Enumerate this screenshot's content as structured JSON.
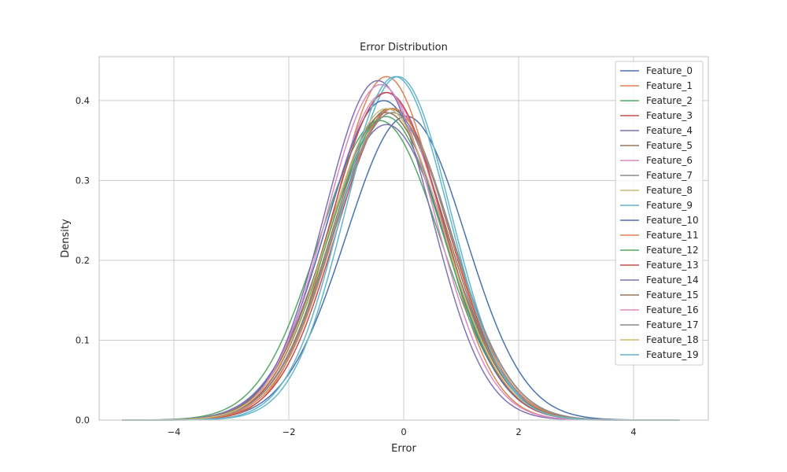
{
  "chart_data": {
    "type": "line",
    "title": "Error Distribution",
    "xlabel": "Error",
    "ylabel": "Density",
    "xlim": [
      -5.3,
      5.3
    ],
    "ylim": [
      0,
      0.455
    ],
    "xticks": [
      -4,
      -2,
      0,
      2,
      4
    ],
    "xtick_labels": [
      "−4",
      "−2",
      "0",
      "2",
      "4"
    ],
    "yticks": [
      0,
      0.1,
      0.2,
      0.3,
      0.4
    ],
    "ytick_labels": [
      "0.0",
      "0.1",
      "0.2",
      "0.3",
      "0.4"
    ],
    "grid": true,
    "legend_position": "top-right",
    "series": [
      {
        "name": "Feature_0",
        "color": "#4c72b0",
        "mu": 0.0,
        "sigma": 1.04,
        "peak": 0.38,
        "skew": 0.3
      },
      {
        "name": "Feature_1",
        "color": "#dd8452",
        "mu": -0.3,
        "sigma": 0.92,
        "peak": 0.43,
        "skew": 0.0
      },
      {
        "name": "Feature_2",
        "color": "#55a868",
        "mu": -0.4,
        "sigma": 1.05,
        "peak": 0.375,
        "skew": -0.1
      },
      {
        "name": "Feature_3",
        "color": "#c44e52",
        "mu": -0.2,
        "sigma": 0.98,
        "peak": 0.39,
        "skew": 0.1
      },
      {
        "name": "Feature_4",
        "color": "#8172b3",
        "mu": -0.3,
        "sigma": 1.05,
        "peak": 0.37,
        "skew": 0.0
      },
      {
        "name": "Feature_5",
        "color": "#937860",
        "mu": -0.25,
        "sigma": 1.0,
        "peak": 0.39,
        "skew": 0.05
      },
      {
        "name": "Feature_6",
        "color": "#da8bc3",
        "mu": -0.35,
        "sigma": 1.0,
        "peak": 0.41,
        "skew": 0.2
      },
      {
        "name": "Feature_7",
        "color": "#8c8c8c",
        "mu": -0.2,
        "sigma": 1.02,
        "peak": 0.39,
        "skew": 0.0
      },
      {
        "name": "Feature_8",
        "color": "#ccb974",
        "mu": -0.3,
        "sigma": 1.02,
        "peak": 0.385,
        "skew": 0.0
      },
      {
        "name": "Feature_9",
        "color": "#64b5cd",
        "mu": -0.1,
        "sigma": 0.92,
        "peak": 0.43,
        "skew": 0.0
      },
      {
        "name": "Feature_10",
        "color": "#4c72b0",
        "mu": -0.35,
        "sigma": 1.0,
        "peak": 0.4,
        "skew": 0.0
      },
      {
        "name": "Feature_11",
        "color": "#dd8452",
        "mu": -0.2,
        "sigma": 1.0,
        "peak": 0.39,
        "skew": 0.0
      },
      {
        "name": "Feature_12",
        "color": "#55a868",
        "mu": -0.3,
        "sigma": 1.0,
        "peak": 0.38,
        "skew": -0.05
      },
      {
        "name": "Feature_13",
        "color": "#c44e52",
        "mu": -0.3,
        "sigma": 0.98,
        "peak": 0.41,
        "skew": 0.05
      },
      {
        "name": "Feature_14",
        "color": "#8172b3",
        "mu": -0.45,
        "sigma": 0.93,
        "peak": 0.425,
        "skew": 0.0
      },
      {
        "name": "Feature_15",
        "color": "#937860",
        "mu": -0.3,
        "sigma": 1.02,
        "peak": 0.385,
        "skew": 0.0
      },
      {
        "name": "Feature_16",
        "color": "#da8bc3",
        "mu": -0.4,
        "sigma": 0.95,
        "peak": 0.42,
        "skew": 0.0
      },
      {
        "name": "Feature_17",
        "color": "#8c8c8c",
        "mu": -0.2,
        "sigma": 1.02,
        "peak": 0.385,
        "skew": 0.0
      },
      {
        "name": "Feature_18",
        "color": "#ccb974",
        "mu": -0.3,
        "sigma": 1.0,
        "peak": 0.39,
        "skew": 0.0
      },
      {
        "name": "Feature_19",
        "color": "#64b5cd",
        "mu": -0.15,
        "sigma": 0.93,
        "peak": 0.43,
        "skew": 0.0
      }
    ]
  }
}
